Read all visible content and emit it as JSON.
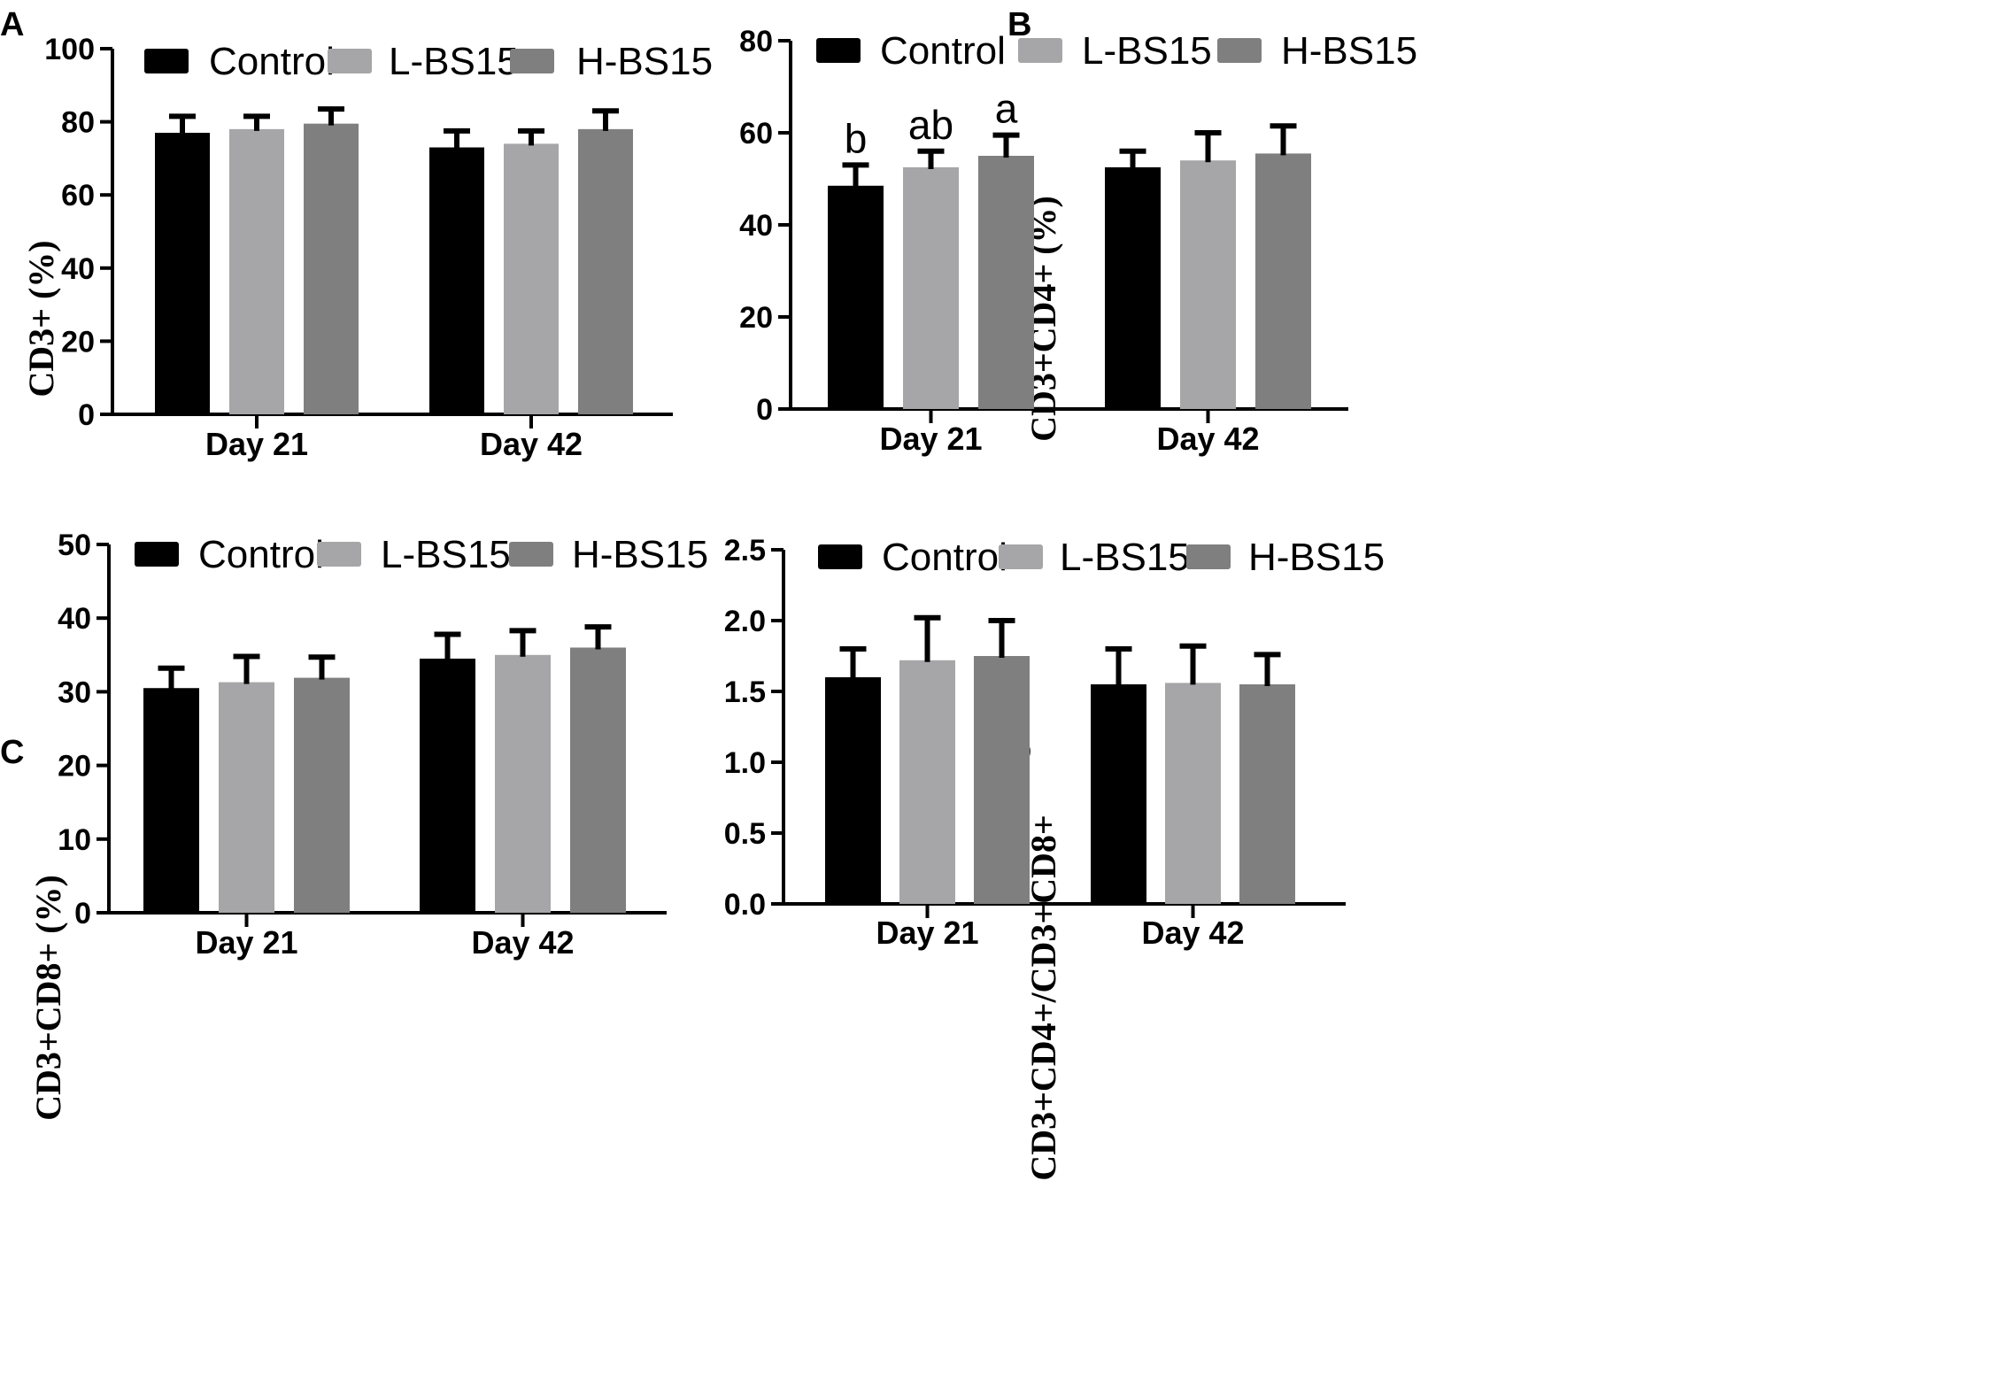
{
  "colors": {
    "Control": "#000000",
    "L-BS15": "#a6a6a8",
    "H-BS15": "#7f7f7f"
  },
  "chart_data": [
    {
      "panel": "A",
      "type": "bar",
      "title": "",
      "xlabel": "",
      "ylabel": "CD3+ (%)",
      "categories": [
        "Day 21",
        "Day 42"
      ],
      "ylim": [
        0,
        100
      ],
      "yticks": [
        "0",
        "20",
        "40",
        "60",
        "80",
        "100"
      ],
      "legend_position": "top",
      "series": [
        {
          "name": "Control",
          "values": [
            77,
            73
          ],
          "errors": [
            4.5,
            4.5
          ]
        },
        {
          "name": "L-BS15",
          "values": [
            78,
            74
          ],
          "errors": [
            3.5,
            3.5
          ]
        },
        {
          "name": "H-BS15",
          "values": [
            79.5,
            78
          ],
          "errors": [
            4,
            5
          ]
        }
      ]
    },
    {
      "panel": "B",
      "type": "bar",
      "title": "",
      "xlabel": "",
      "ylabel": "CD3+CD4+ (%)",
      "categories": [
        "Day 21",
        "Day 42"
      ],
      "ylim": [
        0,
        80
      ],
      "yticks": [
        "0",
        "20",
        "40",
        "60",
        "80"
      ],
      "legend_position": "top",
      "series": [
        {
          "name": "Control",
          "values": [
            48.5,
            52.5
          ],
          "errors": [
            4.5,
            3.5
          ]
        },
        {
          "name": "L-BS15",
          "values": [
            52.5,
            54
          ],
          "errors": [
            3.5,
            6
          ]
        },
        {
          "name": "H-BS15",
          "values": [
            55,
            55.5
          ],
          "errors": [
            4.5,
            6
          ]
        }
      ],
      "annotations": [
        {
          "category": "Day 21",
          "series": "Control",
          "text": "b"
        },
        {
          "category": "Day 21",
          "series": "L-BS15",
          "text": "ab"
        },
        {
          "category": "Day 21",
          "series": "H-BS15",
          "text": "a"
        }
      ]
    },
    {
      "panel": "C",
      "type": "bar",
      "title": "",
      "xlabel": "",
      "ylabel": "CD3+CD8+ (%)",
      "categories": [
        "Day 21",
        "Day 42"
      ],
      "ylim": [
        0,
        50
      ],
      "yticks": [
        "0",
        "10",
        "20",
        "30",
        "40",
        "50"
      ],
      "legend_position": "top",
      "series": [
        {
          "name": "Control",
          "values": [
            30.5,
            34.5
          ],
          "errors": [
            2.7,
            3.3
          ]
        },
        {
          "name": "L-BS15",
          "values": [
            31.3,
            35
          ],
          "errors": [
            3.5,
            3.3
          ]
        },
        {
          "name": "H-BS15",
          "values": [
            31.9,
            36
          ],
          "errors": [
            2.8,
            2.8
          ]
        }
      ]
    },
    {
      "panel": "D",
      "type": "bar",
      "title": "",
      "xlabel": "",
      "ylabel": "CD3+CD4+/CD3+CD8+",
      "categories": [
        "Day 21",
        "Day 42"
      ],
      "ylim": [
        0,
        2.5
      ],
      "yticks": [
        "0.0",
        "0.5",
        "1.0",
        "1.5",
        "2.0",
        "2.5"
      ],
      "legend_position": "top",
      "series": [
        {
          "name": "Control",
          "values": [
            1.6,
            1.55
          ],
          "errors": [
            0.2,
            0.25
          ]
        },
        {
          "name": "L-BS15",
          "values": [
            1.72,
            1.56
          ],
          "errors": [
            0.3,
            0.26
          ]
        },
        {
          "name": "H-BS15",
          "values": [
            1.75,
            1.55
          ],
          "errors": [
            0.25,
            0.21
          ]
        }
      ]
    }
  ]
}
